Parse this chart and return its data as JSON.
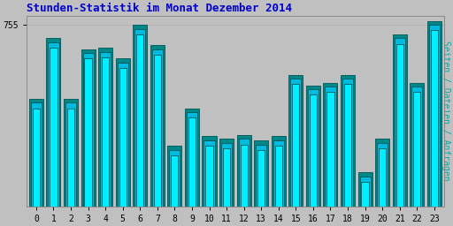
{
  "title": "Stunden-Statistik im Monat Dezember 2014",
  "title_color": "#0000CC",
  "ylabel": "Seiten / Dateien / Anfragen",
  "ylabel_color": "#00AAAA",
  "background_color": "#C0C0C0",
  "plot_bg_color": "#C0C0C0",
  "ytick_label": "755",
  "hours": [
    0,
    1,
    2,
    3,
    4,
    5,
    6,
    7,
    8,
    9,
    10,
    11,
    12,
    13,
    14,
    15,
    16,
    17,
    18,
    19,
    20,
    21,
    22,
    23
  ],
  "bar_back": [
    700,
    745,
    700,
    737,
    738,
    730,
    755,
    740,
    665,
    693,
    672,
    670,
    673,
    669,
    672,
    718,
    710,
    712,
    718,
    645,
    670,
    748,
    712,
    758
  ],
  "bar_mid": [
    697,
    742,
    697,
    734,
    735,
    727,
    752,
    737,
    662,
    690,
    669,
    667,
    670,
    666,
    669,
    715,
    707,
    709,
    715,
    642,
    667,
    745,
    709,
    755
  ],
  "bar_front": [
    693,
    738,
    693,
    730,
    731,
    723,
    748,
    733,
    658,
    686,
    665,
    663,
    666,
    662,
    665,
    711,
    703,
    705,
    711,
    638,
    663,
    741,
    705,
    751
  ],
  "bar_back_color": "#008888",
  "bar_mid_color": "#00BBDD",
  "bar_front_color": "#00EEFF",
  "bar_edge_color": "#005555",
  "ylim_min": 620,
  "ylim_max": 762,
  "yticks": [
    755
  ],
  "font_family": "monospace",
  "title_fontsize": 9,
  "tick_fontsize": 7,
  "ylabel_fontsize": 7
}
